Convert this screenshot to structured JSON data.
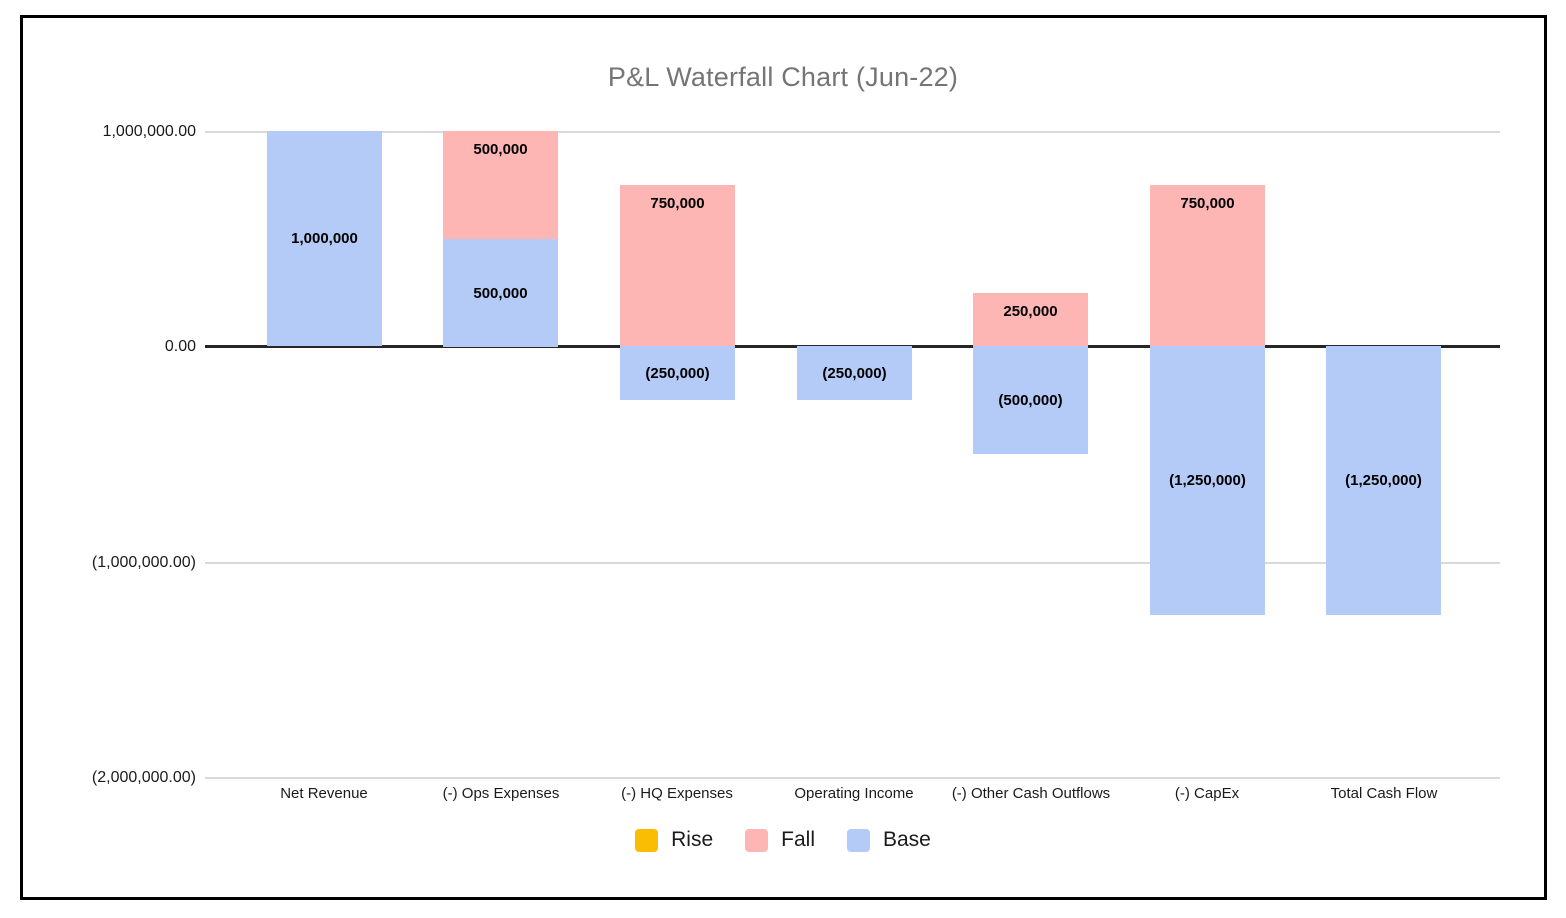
{
  "title": "P&L Waterfall Chart (Jun-22)",
  "legend": {
    "items": [
      {
        "label": "Rise",
        "series": "rise",
        "color": "#fbbc04"
      },
      {
        "label": "Fall",
        "series": "fall",
        "color": "#fdb6b4"
      },
      {
        "label": "Base",
        "series": "base",
        "color": "#b5cbf7"
      }
    ]
  },
  "chart_data": {
    "type": "bar",
    "subtype": "waterfall (stacked columns)",
    "title": "P&L Waterfall Chart (Jun-22)",
    "ylim": [
      -2000000,
      1000000
    ],
    "grid": true,
    "legend_position": "bottom-center",
    "y_ticks": [
      {
        "value": 1000000,
        "label": "1,000,000.00"
      },
      {
        "value": 0,
        "label": "0.00"
      },
      {
        "value": -1000000,
        "label": "(1,000,000.00)"
      },
      {
        "value": -2000000,
        "label": "(2,000,000.00)"
      }
    ],
    "series_colors": {
      "rise": "#fbbc04",
      "fall": "#fdb6b4",
      "base": "#b5cbf7"
    },
    "categories": [
      {
        "label": "Net Revenue",
        "segments": [
          {
            "series": "base",
            "from": 0,
            "to": 1000000,
            "label": "1,000,000"
          }
        ]
      },
      {
        "label": "(-) Ops Expenses",
        "segments": [
          {
            "series": "fall",
            "from": 500000,
            "to": 1000000,
            "label": "500,000"
          },
          {
            "series": "base",
            "from": 0,
            "to": 500000,
            "label": "500,000"
          }
        ]
      },
      {
        "label": "(-) HQ Expenses",
        "segments": [
          {
            "series": "fall",
            "from": 0,
            "to": 750000,
            "label": "750,000"
          },
          {
            "series": "base",
            "from": -250000,
            "to": 0,
            "label": "(250,000)"
          }
        ]
      },
      {
        "label": "Operating Income",
        "segments": [
          {
            "series": "base",
            "from": -250000,
            "to": 0,
            "label": "(250,000)"
          }
        ]
      },
      {
        "label": "(-) Other Cash Outflows",
        "segments": [
          {
            "series": "fall",
            "from": 0,
            "to": 250000,
            "label": "250,000"
          },
          {
            "series": "base",
            "from": -500000,
            "to": 0,
            "label": "(500,000)"
          }
        ]
      },
      {
        "label": "(-) CapEx",
        "segments": [
          {
            "series": "fall",
            "from": 0,
            "to": 750000,
            "label": "750,000"
          },
          {
            "series": "base",
            "from": -1250000,
            "to": 0,
            "label": "(1,250,000)"
          }
        ]
      },
      {
        "label": "Total Cash Flow",
        "segments": [
          {
            "series": "base",
            "from": -1250000,
            "to": 0,
            "label": "(1,250,000)"
          }
        ]
      }
    ]
  }
}
